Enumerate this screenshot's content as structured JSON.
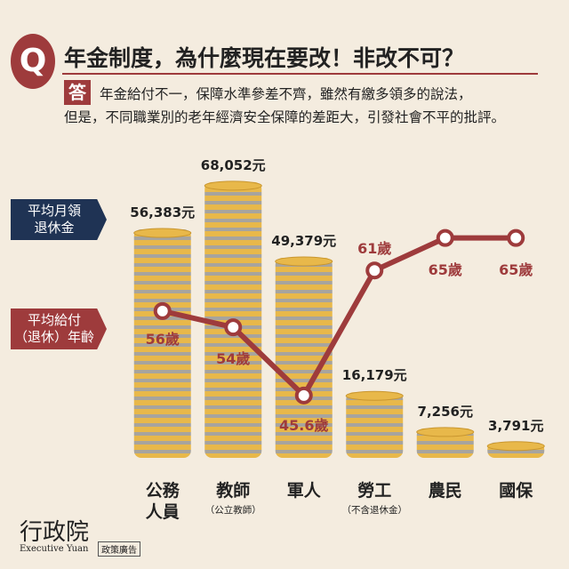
{
  "header": {
    "q": "Q",
    "title": "年金制度，為什麼現在要改！非改不可？",
    "a": "答",
    "answer": [
      "年金給付不一，保障水準參差不齊，雖然有繳多領多的說法，",
      "但是，不同職業別的老年經濟安全保障的差距大，引發社會不平的批評。"
    ]
  },
  "chart_data": {
    "type": "combo",
    "categories": [
      "公務\n人員",
      "教師",
      "軍人",
      "勞工",
      "農民",
      "國保"
    ],
    "category_notes": [
      null,
      "（公立教師）",
      null,
      "（不含退休金）",
      null,
      null
    ],
    "series": [
      {
        "name": "平均月領\n退休金",
        "type": "bar",
        "color": "#e8b84a",
        "values": [
          56383,
          68052,
          49379,
          16179,
          7256,
          3791
        ],
        "value_labels": [
          "56,383元",
          "68,052元",
          "49,379元",
          "16,179元",
          "7,256元",
          "3,791元"
        ]
      },
      {
        "name": "平均給付\n（退休）年齡",
        "type": "line",
        "axis": "y2",
        "color": "#9e3b3c",
        "values": [
          56,
          54,
          45.6,
          61,
          65,
          65
        ],
        "value_labels": [
          "56歲",
          "54歲",
          "45.6歲",
          "61歲",
          "65歲",
          "65歲"
        ]
      }
    ],
    "ylim": [
      0,
      70000
    ],
    "y2lim": [
      40,
      70
    ]
  },
  "footer": {
    "logo": "行政院",
    "logo_en": "Executive Yuan",
    "tag": "政策廣告"
  }
}
